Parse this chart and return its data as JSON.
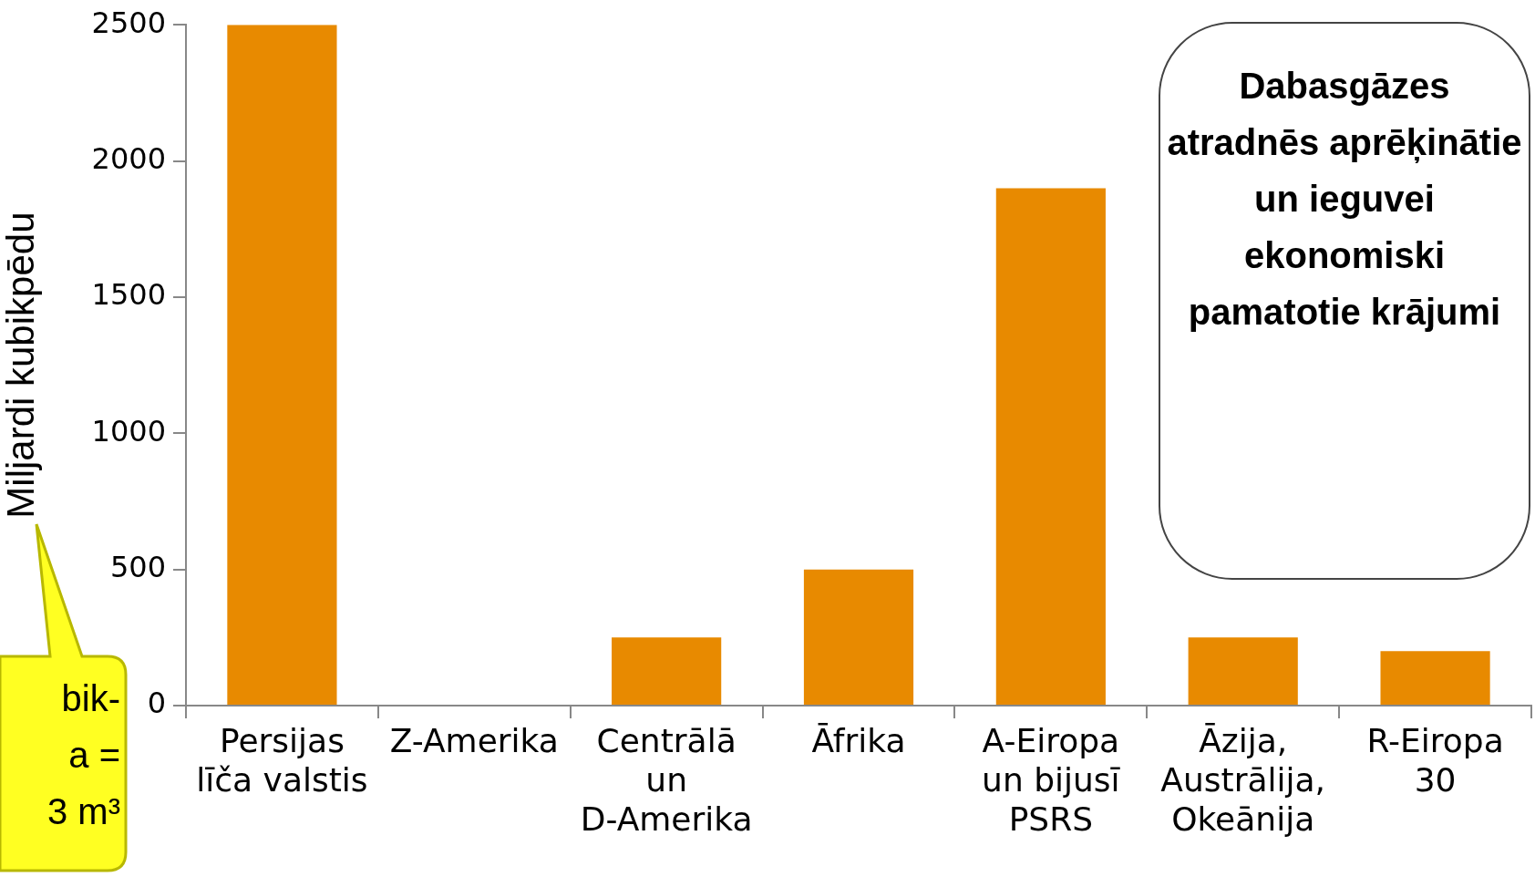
{
  "chart_data": {
    "type": "bar",
    "title": "Dabasgāzes atradnēs aprēķinātie un ieguvei ekonomiski pamatotie krājumi",
    "ylabel": "Miljardi kubikpēdu",
    "categories": [
      "Persijas līča valstis",
      "Z-Amerika",
      "Centrālā un D-Amerika",
      "Āfrika",
      "A-Eiropa un bijusī PSRS",
      "Āzija, Austrālija, Okeānija",
      "R-Eiropa 30"
    ],
    "values": [
      2500,
      0,
      250,
      500,
      1900,
      250,
      200
    ],
    "color": "#e88a00",
    "ylim": [
      0,
      2500
    ],
    "yticks": [
      0,
      500,
      1000,
      1500,
      2000,
      2500
    ],
    "grid": false,
    "legend": false,
    "annotations": [
      "bik-\na =\n3 m³"
    ]
  }
}
